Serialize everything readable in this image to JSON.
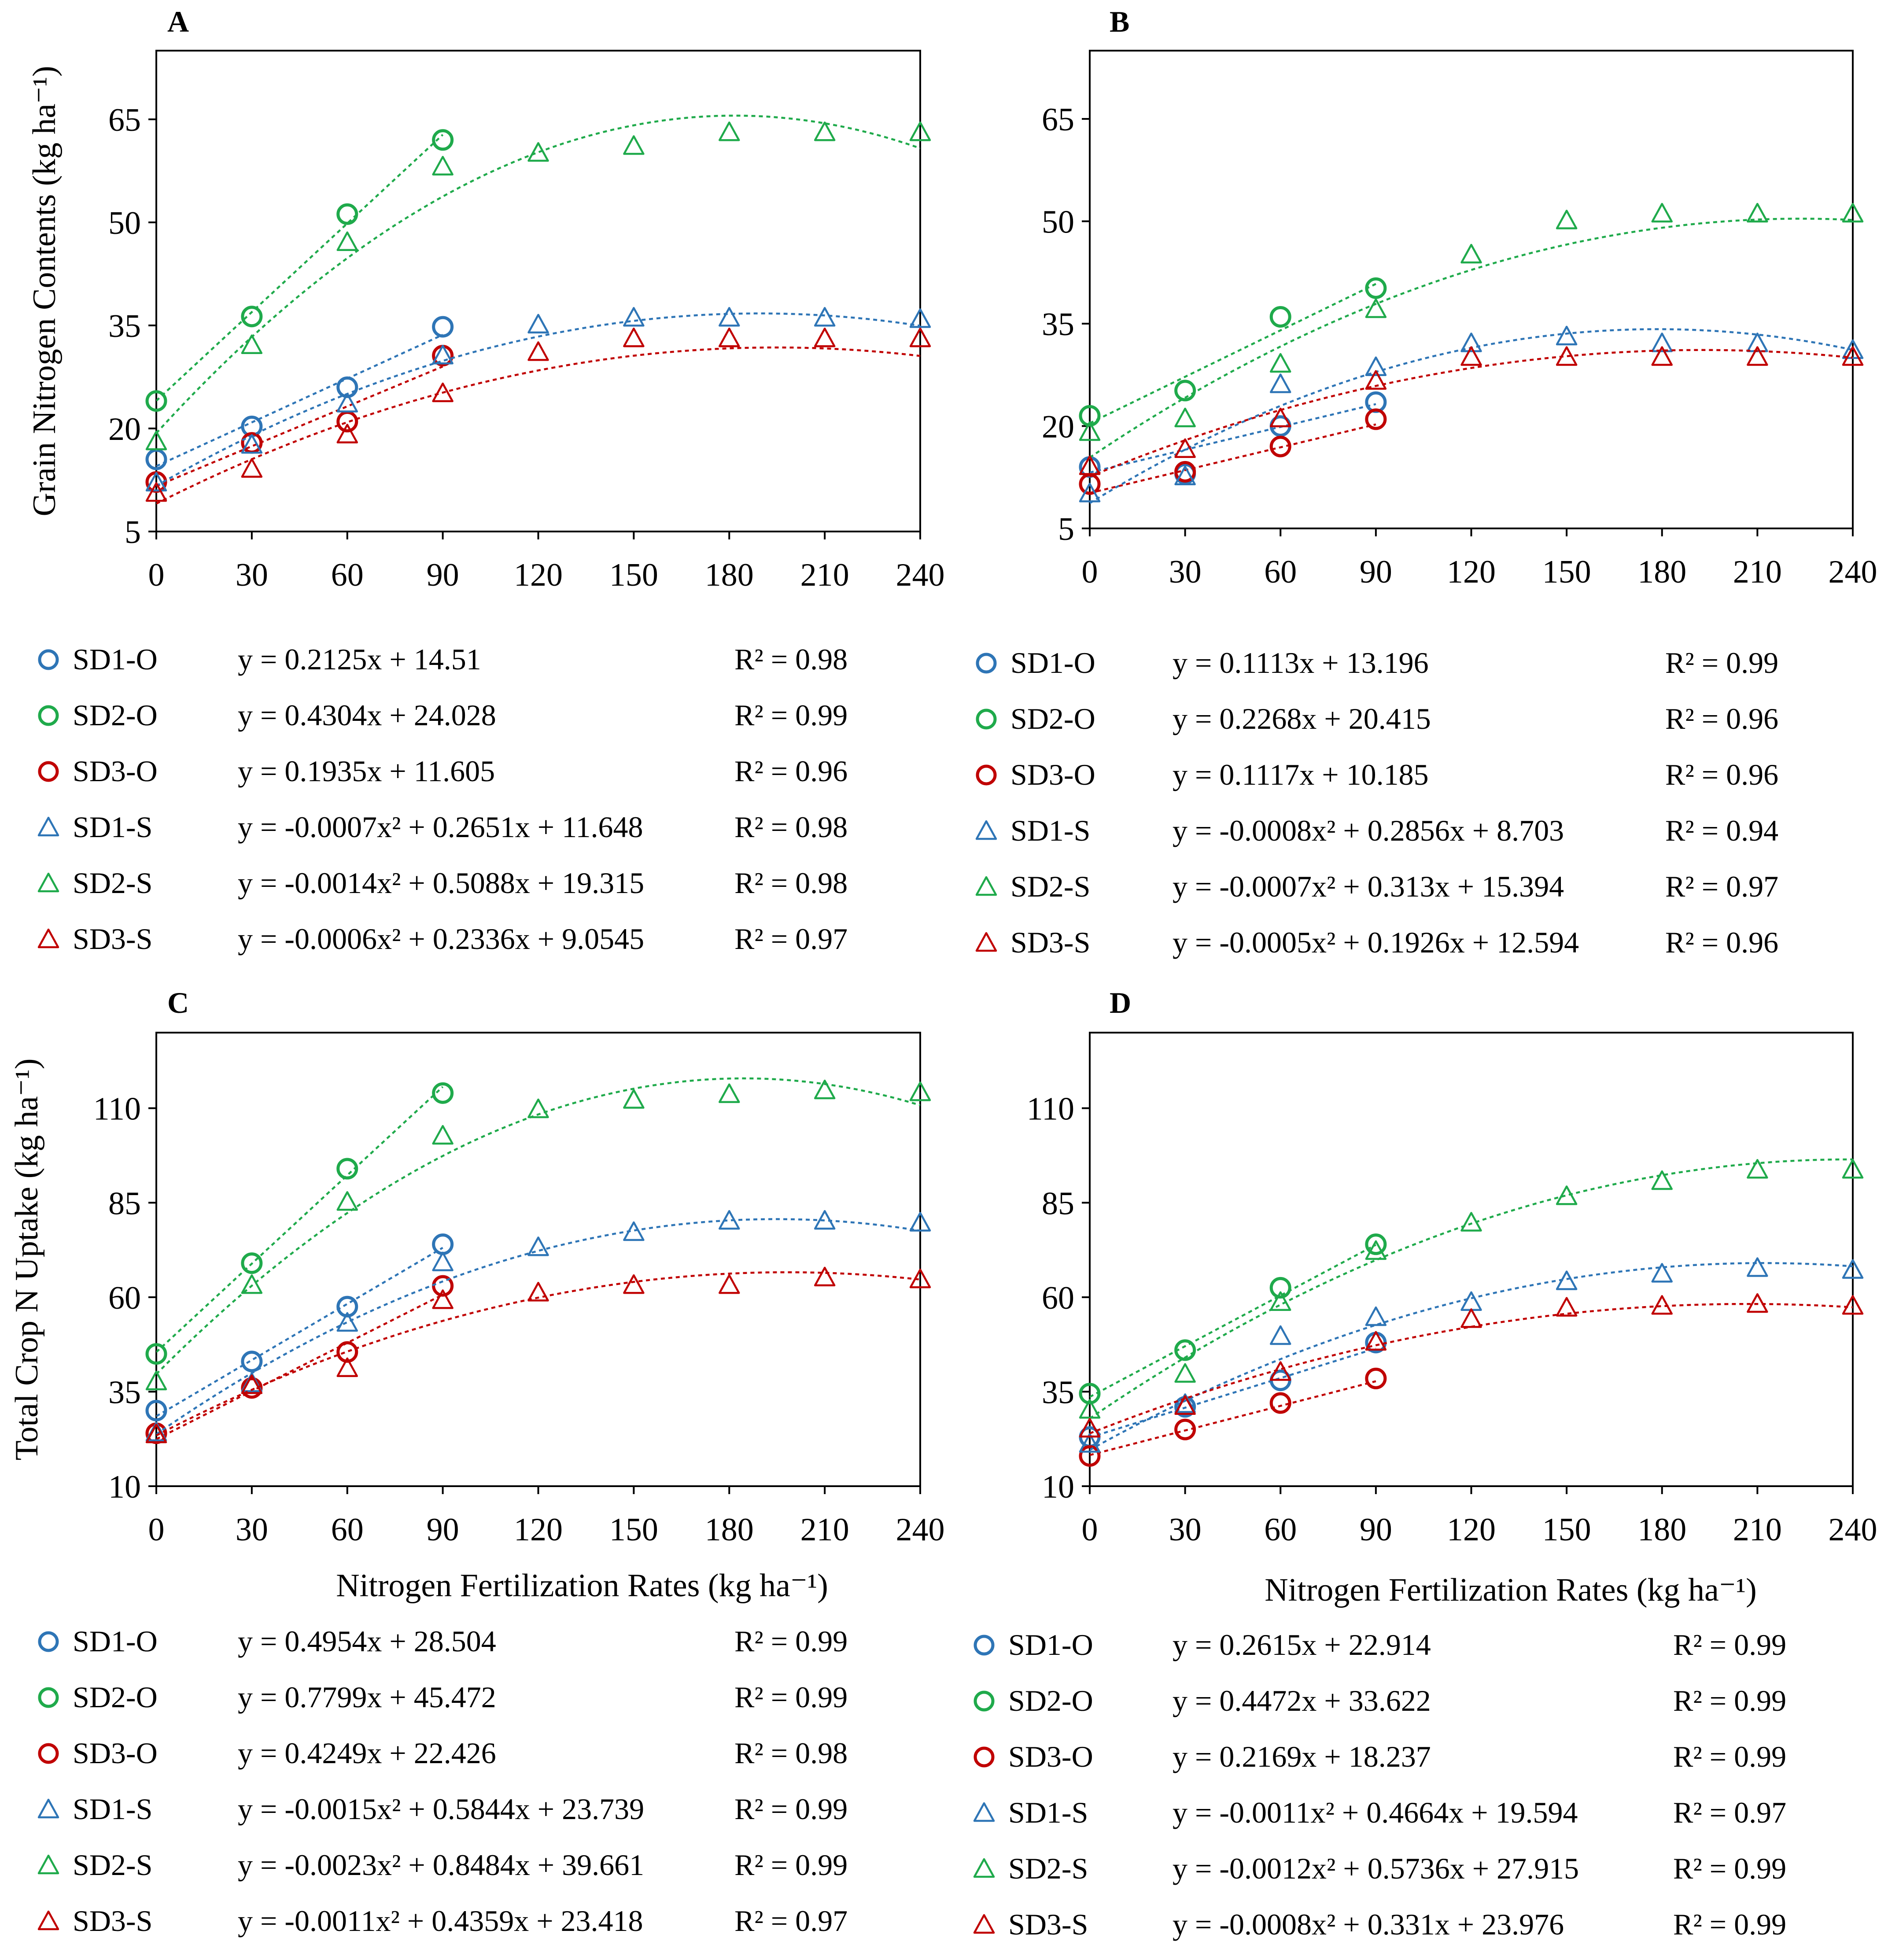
{
  "chart_data": [
    {
      "type": "scatter",
      "panel": "A",
      "ylabel": "Grain Nitrogen Contents (kg ha⁻¹)",
      "xlabel": "",
      "xlim": [
        0,
        240
      ],
      "ylim": [
        5,
        75
      ],
      "xticks": [
        0,
        30,
        60,
        90,
        120,
        150,
        180,
        210,
        240
      ],
      "yticks": [
        5,
        20,
        35,
        50,
        65
      ],
      "series": [
        {
          "name": "SD1-O",
          "marker": "circle",
          "color": "#2e75b6",
          "fit": "linear",
          "a": 0,
          "b": 0.2125,
          "c": 14.51,
          "equation": "y = 0.2125x + 14.51",
          "r2": "R² = 0.98",
          "x": [
            0,
            30,
            60,
            90
          ],
          "y": [
            15.5,
            20.3,
            26,
            34.8
          ]
        },
        {
          "name": "SD2-O",
          "marker": "circle",
          "color": "#1faa4b",
          "fit": "linear",
          "a": 0,
          "b": 0.4304,
          "c": 24.028,
          "equation": "y = 0.4304x + 24.028",
          "r2": "R² = 0.99",
          "x": [
            0,
            30,
            60,
            90
          ],
          "y": [
            24,
            36.3,
            51.2,
            62
          ]
        },
        {
          "name": "SD3-O",
          "marker": "circle",
          "color": "#c00000",
          "fit": "linear",
          "a": 0,
          "b": 0.1935,
          "c": 11.605,
          "equation": "y = 0.1935x + 11.605",
          "r2": "R² = 0.96",
          "x": [
            0,
            30,
            60,
            90
          ],
          "y": [
            12.2,
            17.9,
            21,
            30.6
          ]
        },
        {
          "name": "SD1-S",
          "marker": "triangle",
          "color": "#2e75b6",
          "fit": "quadratic",
          "a": -0.0007,
          "b": 0.2651,
          "c": 11.648,
          "equation": "y = -0.0007x² + 0.2651x + 11.648",
          "r2": "R² = 0.98",
          "x": [
            0,
            30,
            60,
            90,
            120,
            150,
            180,
            210,
            240
          ],
          "y": [
            12,
            17.5,
            23.5,
            30.5,
            35,
            36,
            36,
            36,
            35.8
          ]
        },
        {
          "name": "SD2-S",
          "marker": "triangle",
          "color": "#1faa4b",
          "fit": "quadratic",
          "a": -0.0014,
          "b": 0.5088,
          "c": 19.315,
          "equation": "y = -0.0014x² + 0.5088x + 19.315",
          "r2": "R² = 0.98",
          "x": [
            0,
            30,
            60,
            90,
            120,
            150,
            180,
            210,
            240
          ],
          "y": [
            18,
            32,
            47,
            58,
            60,
            61,
            63,
            63,
            63
          ]
        },
        {
          "name": "SD3-S",
          "marker": "triangle",
          "color": "#c00000",
          "fit": "quadratic",
          "a": -0.0006,
          "b": 0.2336,
          "c": 9.0545,
          "equation": "y = -0.0006x² + 0.2336x + 9.0545",
          "r2": "R² = 0.97",
          "x": [
            0,
            30,
            60,
            90,
            120,
            150,
            180,
            210,
            240
          ],
          "y": [
            10.5,
            14,
            19,
            25,
            31,
            33,
            33,
            33,
            33
          ]
        }
      ]
    },
    {
      "type": "scatter",
      "panel": "B",
      "ylabel": "",
      "xlabel": "",
      "xlim": [
        0,
        240
      ],
      "ylim": [
        5,
        75
      ],
      "xticks": [
        0,
        30,
        60,
        90,
        120,
        150,
        180,
        210,
        240
      ],
      "yticks": [
        5,
        20,
        35,
        50,
        65
      ],
      "series": [
        {
          "name": "SD1-O",
          "marker": "circle",
          "color": "#2e75b6",
          "fit": "linear",
          "a": 0,
          "b": 0.1113,
          "c": 13.196,
          "equation": "y = 0.1113x + 13.196",
          "r2": "R² = 0.99",
          "x": [
            0,
            30,
            60,
            90
          ],
          "y": [
            14,
            13,
            20,
            23.5
          ]
        },
        {
          "name": "SD2-O",
          "marker": "circle",
          "color": "#1faa4b",
          "fit": "linear",
          "a": 0,
          "b": 0.2268,
          "c": 20.415,
          "equation": "y = 0.2268x + 20.415",
          "r2": "R² = 0.96",
          "x": [
            0,
            30,
            60,
            90
          ],
          "y": [
            21.5,
            25.2,
            36,
            40.2
          ]
        },
        {
          "name": "SD3-O",
          "marker": "circle",
          "color": "#c00000",
          "fit": "linear",
          "a": 0,
          "b": 0.1117,
          "c": 10.185,
          "equation": "y = 0.1117x + 10.185",
          "r2": "R² = 0.96",
          "x": [
            0,
            30,
            60,
            90
          ],
          "y": [
            11.5,
            13.3,
            17,
            21
          ]
        },
        {
          "name": "SD1-S",
          "marker": "triangle",
          "color": "#2e75b6",
          "fit": "quadratic",
          "a": -0.0008,
          "b": 0.2856,
          "c": 8.703,
          "equation": "y = -0.0008x² + 0.2856x + 8.703",
          "r2": "R² = 0.94",
          "x": [
            0,
            30,
            60,
            90,
            120,
            150,
            180,
            210,
            240
          ],
          "y": [
            10,
            12.5,
            26,
            28.5,
            32,
            33,
            32,
            32,
            31
          ]
        },
        {
          "name": "SD2-S",
          "marker": "triangle",
          "color": "#1faa4b",
          "fit": "quadratic",
          "a": -0.0007,
          "b": 0.313,
          "c": 15.394,
          "equation": "y = -0.0007x² + 0.313x + 15.394",
          "r2": "R² = 0.97",
          "x": [
            0,
            30,
            60,
            90,
            120,
            150,
            180,
            210,
            240
          ],
          "y": [
            19,
            21,
            29,
            37,
            45,
            50,
            51,
            51,
            51
          ]
        },
        {
          "name": "SD3-S",
          "marker": "triangle",
          "color": "#c00000",
          "fit": "quadratic",
          "a": -0.0005,
          "b": 0.1926,
          "c": 12.594,
          "equation": "y = -0.0005x² + 0.1926x + 12.594",
          "r2": "R² = 0.96",
          "x": [
            0,
            30,
            60,
            90,
            120,
            150,
            180,
            210,
            240
          ],
          "y": [
            14,
            16.5,
            21,
            26.5,
            30,
            30,
            30,
            30,
            30
          ]
        }
      ]
    },
    {
      "type": "scatter",
      "panel": "C",
      "ylabel": "Total Crop N Uptake (kg ha⁻¹)",
      "xlabel": "Nitrogen Fertilization Rates (kg ha⁻¹)",
      "xlim": [
        0,
        240
      ],
      "ylim": [
        10,
        130
      ],
      "xticks": [
        0,
        30,
        60,
        90,
        120,
        150,
        180,
        210,
        240
      ],
      "yticks": [
        10,
        35,
        60,
        85,
        110
      ],
      "series": [
        {
          "name": "SD1-O",
          "marker": "circle",
          "color": "#2e75b6",
          "fit": "linear",
          "a": 0,
          "b": 0.4954,
          "c": 28.504,
          "equation": "y = 0.4954x + 28.504",
          "r2": "R² = 0.99",
          "x": [
            0,
            30,
            60,
            90
          ],
          "y": [
            30,
            43,
            57.5,
            74
          ]
        },
        {
          "name": "SD2-O",
          "marker": "circle",
          "color": "#1faa4b",
          "fit": "linear",
          "a": 0,
          "b": 0.7799,
          "c": 45.472,
          "equation": "y = 0.7799x + 45.472",
          "r2": "R² = 0.99",
          "x": [
            0,
            30,
            60,
            90
          ],
          "y": [
            45,
            69,
            94,
            114
          ]
        },
        {
          "name": "SD3-O",
          "marker": "circle",
          "color": "#c00000",
          "fit": "linear",
          "a": 0,
          "b": 0.4249,
          "c": 22.426,
          "equation": "y = 0.4249x + 22.426",
          "r2": "R² = 0.98",
          "x": [
            0,
            30,
            60,
            90
          ],
          "y": [
            24,
            36,
            45.5,
            63
          ]
        },
        {
          "name": "SD1-S",
          "marker": "triangle",
          "color": "#2e75b6",
          "fit": "quadratic",
          "a": -0.0015,
          "b": 0.5844,
          "c": 23.739,
          "equation": "y = -0.0015x² + 0.5844x + 23.739",
          "r2": "R² = 0.99",
          "x": [
            0,
            30,
            60,
            90,
            120,
            150,
            180,
            210,
            240
          ],
          "y": [
            24,
            37,
            53,
            69,
            73,
            77,
            80,
            80,
            79.5
          ]
        },
        {
          "name": "SD2-S",
          "marker": "triangle",
          "color": "#1faa4b",
          "fit": "quadratic",
          "a": -0.0023,
          "b": 0.8484,
          "c": 39.661,
          "equation": "y = -0.0023x² + 0.8484x + 39.661",
          "r2": "R² = 0.99",
          "x": [
            0,
            30,
            60,
            90,
            120,
            150,
            180,
            210,
            240
          ],
          "y": [
            37.5,
            63,
            85,
            102.5,
            109.5,
            112,
            113.5,
            114.5,
            114
          ]
        },
        {
          "name": "SD3-S",
          "marker": "triangle",
          "color": "#c00000",
          "fit": "quadratic",
          "a": -0.0011,
          "b": 0.4359,
          "c": 23.418,
          "equation": "y = -0.0011x² + 0.4359x + 23.418",
          "r2": "R² = 0.97",
          "x": [
            0,
            30,
            60,
            90,
            120,
            150,
            180,
            210,
            240
          ],
          "y": [
            23.5,
            36.5,
            41,
            59,
            61,
            63,
            63,
            65,
            64.5
          ]
        }
      ]
    },
    {
      "type": "scatter",
      "panel": "D",
      "ylabel": "",
      "xlabel": "Nitrogen Fertilization Rates (kg ha⁻¹)",
      "xlim": [
        0,
        240
      ],
      "ylim": [
        10,
        130
      ],
      "xticks": [
        0,
        30,
        60,
        90,
        120,
        150,
        180,
        210,
        240
      ],
      "yticks": [
        10,
        35,
        60,
        85,
        110
      ],
      "series": [
        {
          "name": "SD1-O",
          "marker": "circle",
          "color": "#2e75b6",
          "fit": "linear",
          "a": 0,
          "b": 0.2615,
          "c": 22.914,
          "equation": "y = 0.2615x + 22.914",
          "r2": "R² = 0.99",
          "x": [
            0,
            30,
            60,
            90
          ],
          "y": [
            23,
            31,
            38,
            48
          ]
        },
        {
          "name": "SD2-O",
          "marker": "circle",
          "color": "#1faa4b",
          "fit": "linear",
          "a": 0,
          "b": 0.4472,
          "c": 33.622,
          "equation": "y = 0.4472x + 33.622",
          "r2": "R² = 0.99",
          "x": [
            0,
            30,
            60,
            90
          ],
          "y": [
            34.5,
            46,
            62.5,
            74
          ]
        },
        {
          "name": "SD3-O",
          "marker": "circle",
          "color": "#c00000",
          "fit": "linear",
          "a": 0,
          "b": 0.2169,
          "c": 18.237,
          "equation": "y = 0.2169x + 18.237",
          "r2": "R² = 0.99",
          "x": [
            0,
            30,
            60,
            90
          ],
          "y": [
            18,
            25,
            32,
            38.5
          ]
        },
        {
          "name": "SD1-S",
          "marker": "triangle",
          "color": "#2e75b6",
          "fit": "quadratic",
          "a": -0.0011,
          "b": 0.4664,
          "c": 19.594,
          "equation": "y = -0.0011x² + 0.4664x + 19.594",
          "r2": "R² = 0.97",
          "x": [
            0,
            30,
            60,
            90,
            120,
            150,
            180,
            210,
            240
          ],
          "y": [
            21,
            31.5,
            49.5,
            54.5,
            58.5,
            64,
            66,
            67.5,
            67
          ]
        },
        {
          "name": "SD2-S",
          "marker": "triangle",
          "color": "#1faa4b",
          "fit": "quadratic",
          "a": -0.0012,
          "b": 0.5736,
          "c": 27.915,
          "equation": "y = -0.0012x² + 0.5736x + 27.915",
          "r2": "R² = 0.99",
          "x": [
            0,
            30,
            60,
            90,
            120,
            150,
            180,
            210,
            240
          ],
          "y": [
            30,
            39.5,
            58.5,
            72,
            79.5,
            86.5,
            90.5,
            93.5,
            93.5
          ]
        },
        {
          "name": "SD3-S",
          "marker": "triangle",
          "color": "#c00000",
          "fit": "quadratic",
          "a": -0.0008,
          "b": 0.331,
          "c": 23.976,
          "equation": "y = -0.0008x² + 0.331x + 23.976",
          "r2": "R² = 0.99",
          "x": [
            0,
            30,
            60,
            90,
            120,
            150,
            180,
            210,
            240
          ],
          "y": [
            25,
            31,
            40,
            48,
            54,
            57,
            57.5,
            58,
            57.5
          ]
        }
      ]
    }
  ]
}
